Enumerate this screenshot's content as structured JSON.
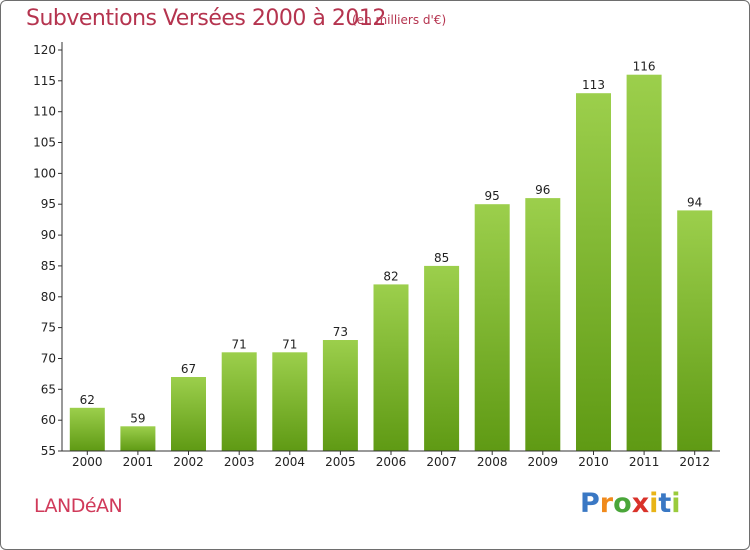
{
  "header": {
    "title": "Subventions Versées 2000 à 2012",
    "subtitle": "(en milliers d'€)"
  },
  "footer": {
    "commune": "LANDéAN",
    "logo_letters": [
      "P",
      "r",
      "o",
      "x",
      "i",
      "t",
      "i"
    ],
    "logo_colors": [
      "#3a78c4",
      "#f08a1c",
      "#4aa63a",
      "#d9322a",
      "#e8b417",
      "#3a78c4",
      "#9acb3c"
    ]
  },
  "colors": {
    "title": "#b5344f",
    "bar_top": "#9ccf4c",
    "bar_bottom": "#5f9a14",
    "axis": "#333333"
  },
  "chart_data": {
    "type": "bar",
    "categories": [
      "2000",
      "2001",
      "2002",
      "2003",
      "2004",
      "2005",
      "2006",
      "2007",
      "2008",
      "2009",
      "2010",
      "2011",
      "2012"
    ],
    "values": [
      62,
      59,
      67,
      71,
      71,
      73,
      82,
      85,
      95,
      96,
      113,
      116,
      94
    ],
    "ylim": [
      55,
      120
    ],
    "yticks": [
      55,
      60,
      65,
      70,
      75,
      80,
      85,
      90,
      95,
      100,
      105,
      110,
      115,
      120
    ],
    "grid": false
  }
}
